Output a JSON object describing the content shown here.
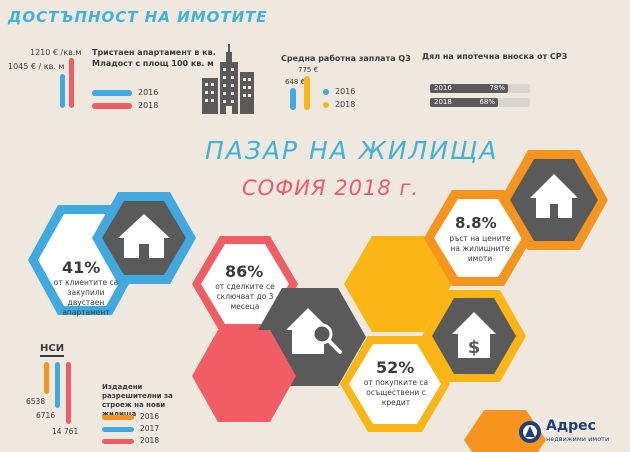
{
  "header": {
    "title": "ДОСТЪПНОСТ НА ИМОТИТЕ"
  },
  "price_block": {
    "value_2018": "1210 € /кв.м",
    "value_2016": "1045 € / кв. м",
    "label": "Тристаен апартамент в кв. Младост с площ 100 кв. м",
    "legend": [
      "2016",
      "2018"
    ]
  },
  "salary_block": {
    "label": "Средна работна заплата Q3",
    "value_2018": "775 €",
    "value_2016": "648 €",
    "legend": [
      "2016",
      "2018"
    ]
  },
  "mortgage_block": {
    "label": "Дял на ипотечна вноска от СРЗ",
    "rows": [
      {
        "year": "2016",
        "pct_label": "78%",
        "pct": 78
      },
      {
        "year": "2018",
        "pct_label": "68%",
        "pct": 68
      }
    ]
  },
  "main_title": {
    "line1": "ПАЗАР НА ЖИЛИЩА",
    "line2": "СОФИЯ 2018 г."
  },
  "stats": [
    {
      "value": "41%",
      "text": "от клиентите са закупили двустаен апартамент"
    },
    {
      "value": "86%",
      "text": "от сделките се сключват до 3 месеца"
    },
    {
      "value": "8.8%",
      "text": "ръст на цените на жилищните имоти"
    },
    {
      "value": "52%",
      "text": "от покупките са осъществени с кредит"
    }
  ],
  "nsi_block": {
    "title": "НСИ",
    "values": [
      "6538",
      "6716",
      "14 761"
    ],
    "label": "Издадени разрешителни за строеж на нови жилища",
    "legend": [
      "2016",
      "2017",
      "2018"
    ]
  },
  "logo": {
    "name": "Адрес",
    "tagline": "недвижими имоти"
  },
  "colors": {
    "blue": "#3fa9e0",
    "red": "#f05d65",
    "orange": "#f7941d",
    "yellow": "#fbb514",
    "grey": "#5a5a5a",
    "title_teal": "#3fb3d9",
    "title_red": "#ef5b6a"
  }
}
